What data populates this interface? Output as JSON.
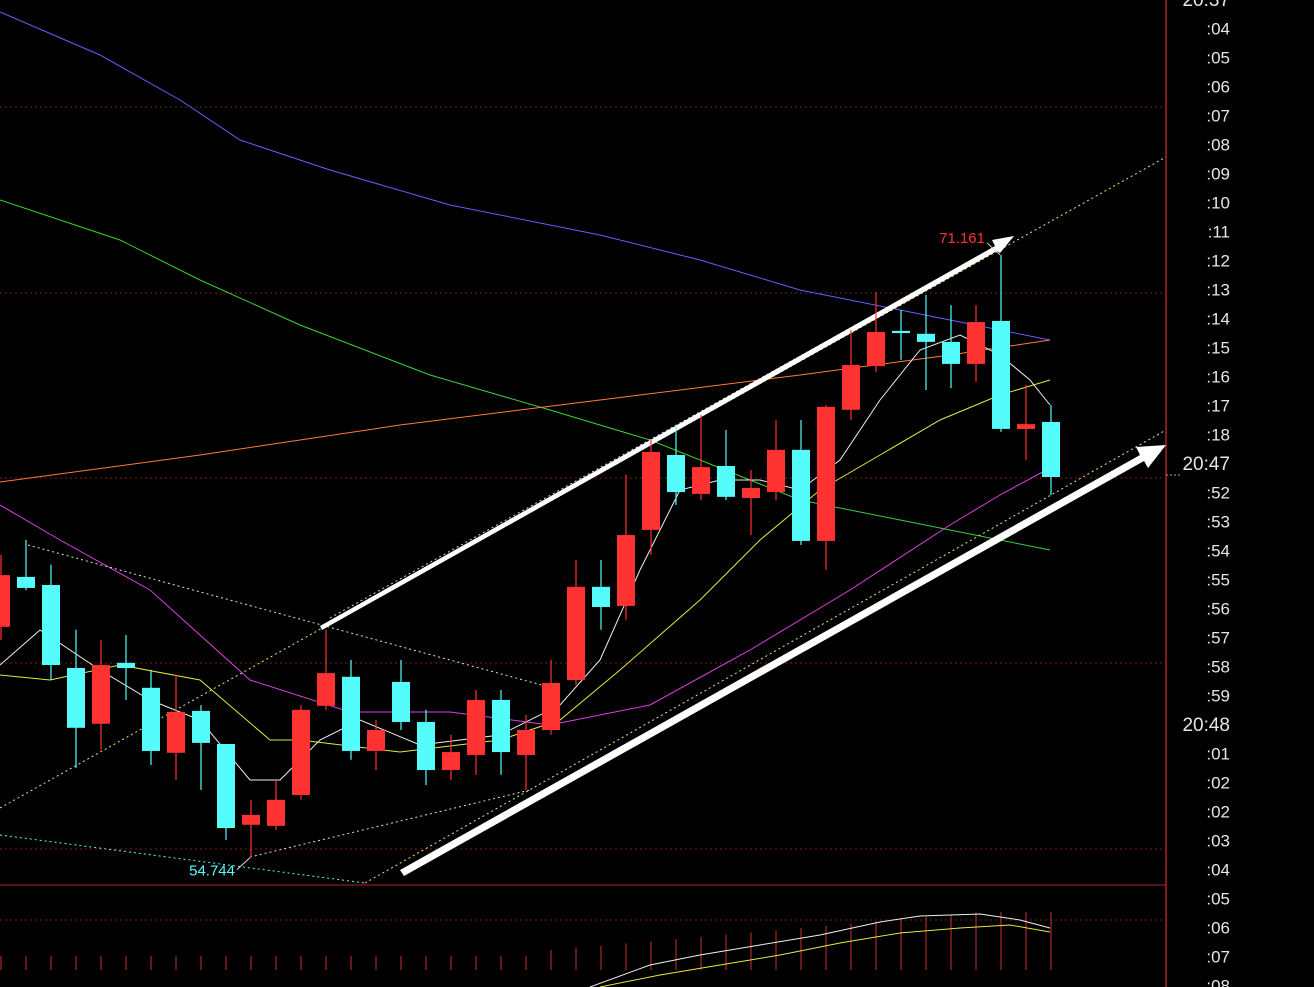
{
  "chart_data": {
    "type": "candlestick",
    "ylim": [
      54.0,
      78.1
    ],
    "up_color": "#ff3232",
    "down_color": "#54fcfc",
    "open": [
      61.03,
      62.39,
      62.17,
      59.91,
      58.39,
      60.05,
      59.37,
      57.6,
      58.74,
      57.84,
      55.64,
      55.61,
      56.45,
      58.88,
      59.67,
      57.65,
      59.53,
      58.44,
      57.13,
      57.54,
      59.04,
      57.54,
      58.22,
      59.58,
      62.12,
      61.6,
      63.67,
      65.71,
      64.65,
      65.41,
      64.54,
      64.7,
      65.85,
      63.37,
      66.94,
      68.13,
      69.09,
      69.01,
      68.79,
      68.19,
      69.36,
      66.42,
      66.61
    ],
    "high": [
      62.99,
      63.4,
      62.72,
      60.95,
      60.67,
      60.81,
      59.86,
      59.72,
      58.9,
      57.84,
      56.32,
      56.86,
      58.9,
      60.95,
      60.13,
      58.49,
      60.13,
      58.77,
      58.09,
      59.31,
      59.31,
      58.63,
      60.13,
      62.85,
      62.85,
      65.17,
      66.12,
      66.53,
      66.8,
      66.39,
      65.3,
      66.66,
      66.66,
      67.07,
      69.11,
      70.15,
      69.66,
      70.07,
      69.79,
      69.79,
      71.161,
      67.62,
      67.07
    ],
    "low": [
      60.67,
      62.03,
      59.58,
      57.19,
      57.68,
      59.04,
      57.27,
      56.86,
      56.59,
      55.23,
      54.744,
      55.5,
      56.32,
      58.77,
      57.41,
      57.13,
      58.22,
      56.72,
      56.86,
      57.0,
      57.0,
      56.59,
      58.09,
      59.45,
      60.95,
      61.22,
      62.99,
      64.35,
      64.48,
      64.48,
      63.53,
      64.48,
      63.26,
      62.58,
      66.66,
      67.97,
      68.3,
      67.48,
      67.53,
      67.7,
      66.34,
      65.57,
      64.62
    ],
    "close": [
      62.44,
      62.09,
      59.99,
      58.28,
      59.99,
      59.91,
      57.65,
      58.71,
      57.87,
      55.55,
      55.91,
      56.32,
      58.77,
      59.77,
      57.65,
      58.22,
      58.44,
      57.13,
      57.62,
      59.04,
      57.62,
      58.22,
      59.5,
      62.12,
      61.57,
      63.53,
      65.79,
      64.7,
      65.38,
      64.57,
      64.81,
      65.85,
      63.37,
      67.02,
      68.16,
      69.06,
      69.03,
      68.79,
      68.19,
      69.33,
      66.42,
      66.55,
      65.11
    ],
    "annotations": [
      {
        "value": 71.161,
        "label": "71.161",
        "color": "#ff3232"
      },
      {
        "value": 54.744,
        "label": "54.744",
        "color": "#54fcfc"
      }
    ],
    "right_labels": [
      "20:37",
      ":04",
      ":05",
      ":06",
      ":07",
      ":08",
      ":09",
      ":10",
      ":11",
      ":12",
      ":13",
      ":14",
      ":15",
      ":16",
      ":17",
      ":18",
      "20:47",
      ":52",
      ":53",
      ":54",
      ":55",
      ":56",
      ":57",
      ":58",
      ":59",
      "20:48",
      ":01",
      ":02",
      ":02",
      ":03",
      ":04",
      ":05",
      ":06",
      ":07",
      ":08"
    ]
  }
}
